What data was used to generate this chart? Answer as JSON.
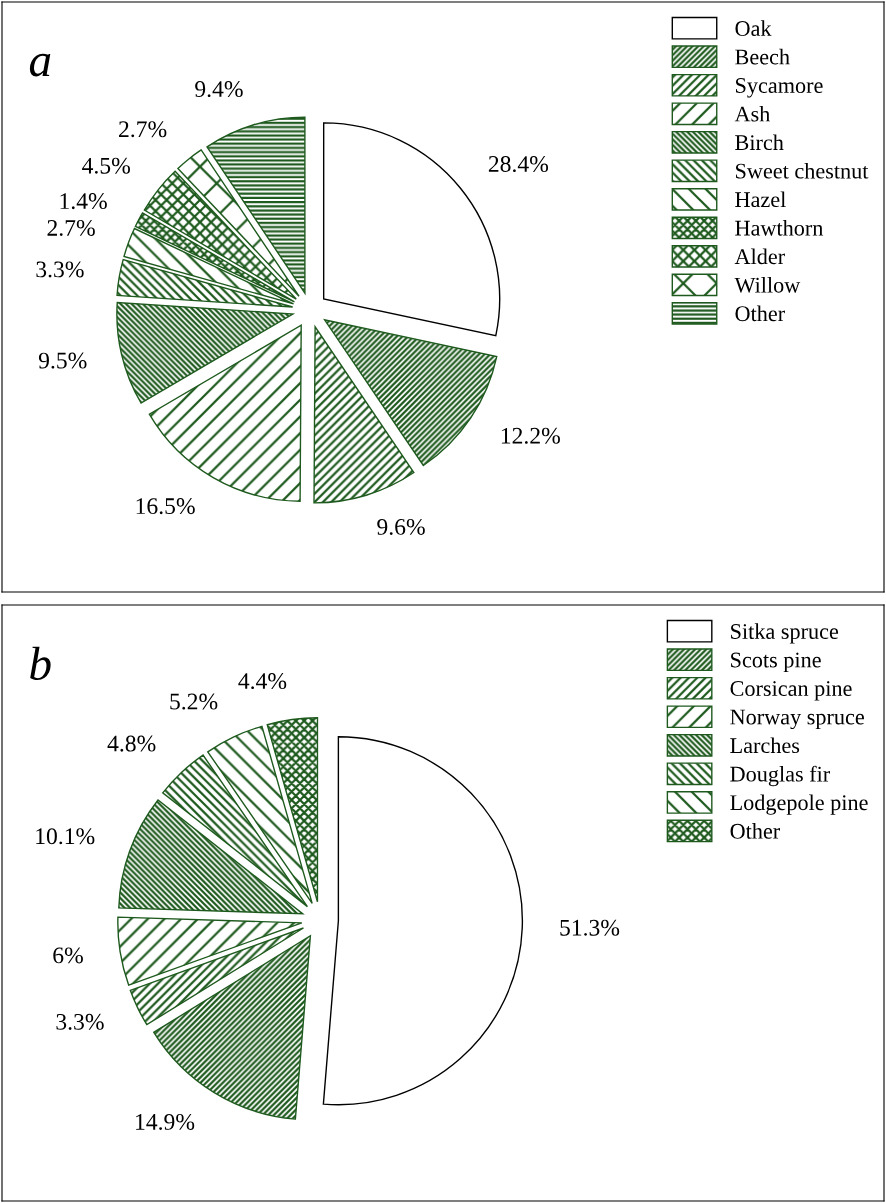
{
  "chart_data": [
    {
      "type": "pie",
      "title": "a",
      "legend": "top right",
      "categories": [
        "Oak",
        "Beech",
        "Sycamore",
        "Ash",
        "Birch",
        "Sweet chestnut",
        "Hazel",
        "Hawthorn",
        "Alder",
        "Willow",
        "Other"
      ],
      "values": [
        28.4,
        12.2,
        9.6,
        16.5,
        9.5,
        3.3,
        2.7,
        1.4,
        4.5,
        2.7,
        9.4
      ],
      "value_labels": [
        "28.4%",
        "12.2%",
        "9.6%",
        "16.5%",
        "9.5%",
        "3.3%",
        "2.7%",
        "1.4%",
        "4.5%",
        "2.7%",
        "9.4%"
      ],
      "colors": [
        "#ffffff",
        "#1e5a1e",
        "#1e5a1e",
        "#1e5a1e",
        "#1e5a1e",
        "#1e5a1e",
        "#1e5a1e",
        "#1e5a1e",
        "#1e5a1e",
        "#1e5a1e",
        "#1e5a1e"
      ]
    },
    {
      "type": "pie",
      "title": "b",
      "legend": "top right",
      "categories": [
        "Sitka spruce",
        "Scots pine",
        "Corsican pine",
        "Norway spruce",
        "Larches",
        "Douglas fir",
        "Lodgepole pine",
        "Other"
      ],
      "values": [
        51.3,
        14.9,
        3.3,
        6,
        10.1,
        4.8,
        5.2,
        4.4
      ],
      "value_labels": [
        "51.3%",
        "14.9%",
        "3.3%",
        "6%",
        "10.1%",
        "4.8%",
        "5.2%",
        "4.4%"
      ],
      "colors": [
        "#ffffff",
        "#1e5a1e",
        "#1e5a1e",
        "#1e5a1e",
        "#1e5a1e",
        "#1e5a1e",
        "#1e5a1e",
        "#1e5a1e"
      ]
    }
  ]
}
